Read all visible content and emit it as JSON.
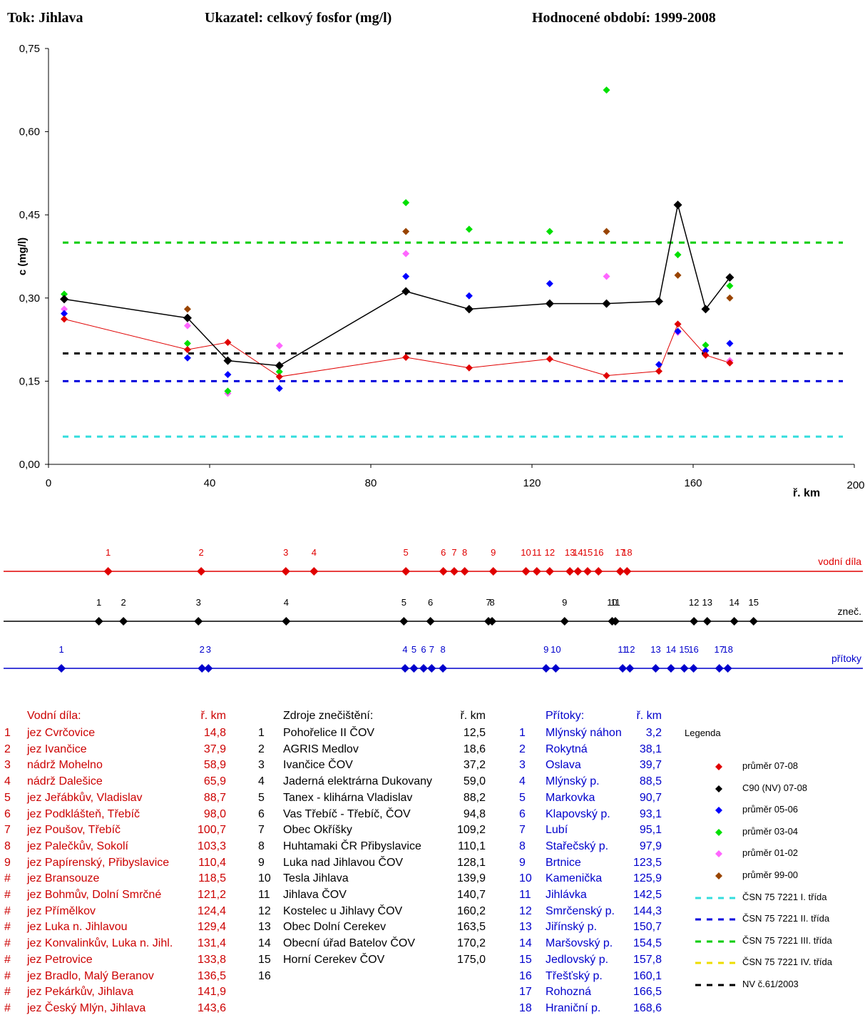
{
  "header": {
    "river": "Tok: Jihlava",
    "indicator": "Ukazatel: celkový fosfor (mg/l)",
    "period": "Hodnocené období: 1999-2008"
  },
  "chart_data": {
    "type": "scatter",
    "ylabel": "c (mg/l)",
    "xlabel": "ř. km",
    "xlim": [
      0,
      200
    ],
    "ylim": [
      0,
      0.75
    ],
    "xticks": [
      "0",
      "40",
      "80",
      "120",
      "160",
      "200"
    ],
    "yticks": [
      "0,00",
      "0,15",
      "0,30",
      "0,45",
      "0,60",
      "0,75"
    ],
    "x": [
      3.9,
      34.5,
      44.5,
      57.3,
      88.7,
      104.4,
      124.4,
      138.5,
      151.5,
      156.2,
      163.1,
      169.1
    ],
    "series": [
      {
        "name": "průměr 07-08",
        "color": "#e00000",
        "line": true,
        "values": [
          0.262,
          0.207,
          0.22,
          0.158,
          0.193,
          0.174,
          0.19,
          0.16,
          0.168,
          0.253,
          0.197,
          0.183
        ]
      },
      {
        "name": "C90 (NV) 07-08",
        "color": "#000000",
        "line": true,
        "values": [
          0.298,
          0.264,
          0.187,
          0.178,
          0.312,
          0.28,
          0.29,
          0.29,
          0.294,
          0.468,
          0.28,
          0.337
        ]
      },
      {
        "name": "průměr 05-06",
        "color": "#0000ff",
        "line": false,
        "values": [
          0.272,
          0.192,
          0.162,
          0.137,
          0.339,
          0.304,
          0.326,
          null,
          0.18,
          0.24,
          0.205,
          0.218
        ]
      },
      {
        "name": "průměr 03-04",
        "color": "#00e000",
        "line": false,
        "values": [
          0.307,
          0.218,
          0.132,
          0.167,
          0.472,
          0.424,
          0.42,
          0.675,
          null,
          0.378,
          0.215,
          0.322
        ]
      },
      {
        "name": "průměr 01-02",
        "color": "#ff66ff",
        "line": false,
        "values": [
          0.28,
          0.25,
          0.128,
          0.214,
          0.38,
          null,
          null,
          0.339,
          null,
          0.238,
          null,
          0.187
        ]
      },
      {
        "name": "průměr 99-00",
        "color": "#994400",
        "line": false,
        "values": [
          null,
          0.28,
          null,
          0.178,
          0.42,
          null,
          null,
          0.42,
          null,
          0.341,
          null,
          0.3
        ]
      }
    ],
    "hlines": [
      {
        "name": "ČSN 75 7221 I. třída",
        "value": 0.05,
        "color": "#33dddd"
      },
      {
        "name": "ČSN 75 7221 II. třída",
        "value": 0.15,
        "color": "#0000dd"
      },
      {
        "name": "ČSN 75 7221 III. třída",
        "value": 0.4,
        "color": "#00cc00"
      },
      {
        "name": "NV č.61/2003",
        "value": 0.2,
        "color": "#000000"
      }
    ],
    "strips": [
      {
        "label": "vodní díla",
        "color": "#e00000",
        "km": [
          14.8,
          37.9,
          58.9,
          65.9,
          88.7,
          98.0,
          100.7,
          103.3,
          110.4,
          118.5,
          121.2,
          124.4,
          129.4,
          131.4,
          133.8,
          136.5,
          141.9,
          143.6
        ],
        "nums": [
          "1",
          "2",
          "3",
          "4",
          "5",
          "6",
          "7",
          "8",
          "9",
          "10",
          "11",
          "12",
          "13",
          "14",
          "15",
          "16",
          "17",
          "18"
        ]
      },
      {
        "label": "zneč.",
        "color": "#000000",
        "km": [
          12.5,
          18.6,
          37.2,
          59.0,
          88.2,
          94.8,
          109.2,
          110.1,
          128.1,
          139.9,
          140.7,
          160.2,
          163.5,
          170.2,
          175.0
        ],
        "nums": [
          "1",
          "2",
          "3",
          "4",
          "5",
          "6",
          "7",
          "8",
          "9",
          "10",
          "11",
          "12",
          "13",
          "14",
          "15"
        ]
      },
      {
        "label": "přítoky",
        "color": "#0000cc",
        "km": [
          3.2,
          38.1,
          39.7,
          88.5,
          90.7,
          93.1,
          95.1,
          97.9,
          123.5,
          125.9,
          142.5,
          144.3,
          150.7,
          154.5,
          157.8,
          160.1,
          166.5,
          168.6
        ],
        "nums": [
          "1",
          "2",
          "3",
          "4",
          "5",
          "6",
          "7",
          "8",
          "9",
          "10",
          "11",
          "12",
          "13",
          "14",
          "15",
          "16",
          "17",
          "18"
        ]
      }
    ]
  },
  "tables": {
    "vodni": {
      "title": "Vodní díla:",
      "kmh": "ř. km",
      "rows": [
        {
          "n": "1",
          "name": "jez Cvrčovice",
          "km": "14,8"
        },
        {
          "n": "2",
          "name": "jez Ivančice",
          "km": "37,9"
        },
        {
          "n": "3",
          "name": "nádrž Mohelno",
          "km": "58,9"
        },
        {
          "n": "4",
          "name": "nádrž Dalešice",
          "km": "65,9"
        },
        {
          "n": "5",
          "name": "jez Jeřábkův, Vladislav",
          "km": "88,7"
        },
        {
          "n": "6",
          "name": "jez Podklášteň, Třebíč",
          "km": "98,0"
        },
        {
          "n": "7",
          "name": "jez Poušov, Třebíč",
          "km": "100,7"
        },
        {
          "n": "8",
          "name": "jez Palečkův, Sokolí",
          "km": "103,3"
        },
        {
          "n": "9",
          "name": "jez Papírenský, Přibyslavice",
          "km": "110,4"
        },
        {
          "n": "#",
          "name": "jez Bransouze",
          "km": "118,5"
        },
        {
          "n": "#",
          "name": "jez Bohmův, Dolní Smrčné",
          "km": "121,2"
        },
        {
          "n": "#",
          "name": "jez Přímělkov",
          "km": "124,4"
        },
        {
          "n": "#",
          "name": "jez Luka n. Jihlavou",
          "km": "129,4"
        },
        {
          "n": "#",
          "name": "jez Konvalinkův, Luka n. Jihl.",
          "km": "131,4"
        },
        {
          "n": "#",
          "name": "jez Petrovice",
          "km": "133,8"
        },
        {
          "n": "#",
          "name": "jez Bradlo, Malý Beranov",
          "km": "136,5"
        },
        {
          "n": "#",
          "name": "jez Pekárkův, Jihlava",
          "km": "141,9"
        },
        {
          "n": "#",
          "name": "jez Český Mlýn, Jihlava",
          "km": "143,6"
        }
      ]
    },
    "zdroje": {
      "title": "Zdroje znečištění:",
      "kmh": "ř. km",
      "rows": [
        {
          "n": "1",
          "name": "Pohořelice II ČOV",
          "km": "12,5"
        },
        {
          "n": "2",
          "name": "AGRIS Medlov",
          "km": "18,6"
        },
        {
          "n": "3",
          "name": "Ivančice ČOV",
          "km": "37,2"
        },
        {
          "n": "4",
          "name": "Jaderná elektrárna Dukovany",
          "km": "59,0"
        },
        {
          "n": "5",
          "name": "Tanex - klihárna Vladislav",
          "km": "88,2"
        },
        {
          "n": "6",
          "name": "Vas Třebíč - Třebíč, ČOV",
          "km": "94,8"
        },
        {
          "n": "7",
          "name": "Obec Okříšky",
          "km": "109,2"
        },
        {
          "n": "8",
          "name": "Huhtamaki ČR Přibyslavice",
          "km": "110,1"
        },
        {
          "n": "9",
          "name": "Luka nad Jihlavou ČOV",
          "km": "128,1"
        },
        {
          "n": "10",
          "name": "Tesla Jihlava",
          "km": "139,9"
        },
        {
          "n": "11",
          "name": "Jihlava ČOV",
          "km": "140,7"
        },
        {
          "n": "12",
          "name": "Kostelec u Jihlavy ČOV",
          "km": "160,2"
        },
        {
          "n": "13",
          "name": "Obec Dolní Cerekev",
          "km": "163,5"
        },
        {
          "n": "14",
          "name": "Obecní úřad Batelov ČOV",
          "km": "170,2"
        },
        {
          "n": "15",
          "name": "Horní Cerekev ČOV",
          "km": "175,0"
        },
        {
          "n": "16",
          "name": "",
          "km": ""
        }
      ]
    },
    "pritoky": {
      "title": "Přítoky:",
      "kmh": "ř. km",
      "rows": [
        {
          "n": "1",
          "name": "Mlýnský náhon",
          "km": "3,2"
        },
        {
          "n": "2",
          "name": "Rokytná",
          "km": "38,1"
        },
        {
          "n": "3",
          "name": "Oslava",
          "km": "39,7"
        },
        {
          "n": "4",
          "name": "Mlýnský p.",
          "km": "88,5"
        },
        {
          "n": "5",
          "name": "Markovka",
          "km": "90,7"
        },
        {
          "n": "6",
          "name": "Klapovský p.",
          "km": "93,1"
        },
        {
          "n": "7",
          "name": "Lubí",
          "km": "95,1"
        },
        {
          "n": "8",
          "name": "Stařečský p.",
          "km": "97,9"
        },
        {
          "n": "9",
          "name": "Brtnice",
          "km": "123,5"
        },
        {
          "n": "10",
          "name": "Kamenička",
          "km": "125,9"
        },
        {
          "n": "11",
          "name": "Jihlávka",
          "km": "142,5"
        },
        {
          "n": "12",
          "name": "Smrčenský p.",
          "km": "144,3"
        },
        {
          "n": "13",
          "name": "Jiřínský p.",
          "km": "150,7"
        },
        {
          "n": "14",
          "name": "Maršovský p.",
          "km": "154,5"
        },
        {
          "n": "15",
          "name": "Jedlovský p.",
          "km": "157,8"
        },
        {
          "n": "16",
          "name": "Třešťský p.",
          "km": "160,1"
        },
        {
          "n": "17",
          "name": "Rohozná",
          "km": "166,5"
        },
        {
          "n": "18",
          "name": "Hraniční p.",
          "km": "168,6"
        }
      ]
    }
  },
  "legend": {
    "title": "Legenda",
    "items": [
      {
        "label": "průměr 07-08",
        "kind": "diamond",
        "color": "#e00000"
      },
      {
        "label": "C90 (NV) 07-08",
        "kind": "diamond",
        "color": "#000000"
      },
      {
        "label": "průměr 05-06",
        "kind": "diamond",
        "color": "#0000ff"
      },
      {
        "label": "průměr 03-04",
        "kind": "diamond",
        "color": "#00e000"
      },
      {
        "label": "průměr 01-02",
        "kind": "diamond",
        "color": "#ff66ff"
      },
      {
        "label": "průměr 99-00",
        "kind": "diamond",
        "color": "#994400"
      },
      {
        "label": "ČSN 75 7221 I. třída",
        "kind": "dash",
        "color": "#33dddd"
      },
      {
        "label": "ČSN 75 7221 II. třída",
        "kind": "dash",
        "color": "#0000dd"
      },
      {
        "label": "ČSN 75 7221 III. třída",
        "kind": "dash",
        "color": "#00cc00"
      },
      {
        "label": "ČSN 75 7221 IV. třída",
        "kind": "dash",
        "color": "#eedd00"
      },
      {
        "label": "NV č.61/2003",
        "kind": "dash",
        "color": "#000000"
      }
    ]
  }
}
